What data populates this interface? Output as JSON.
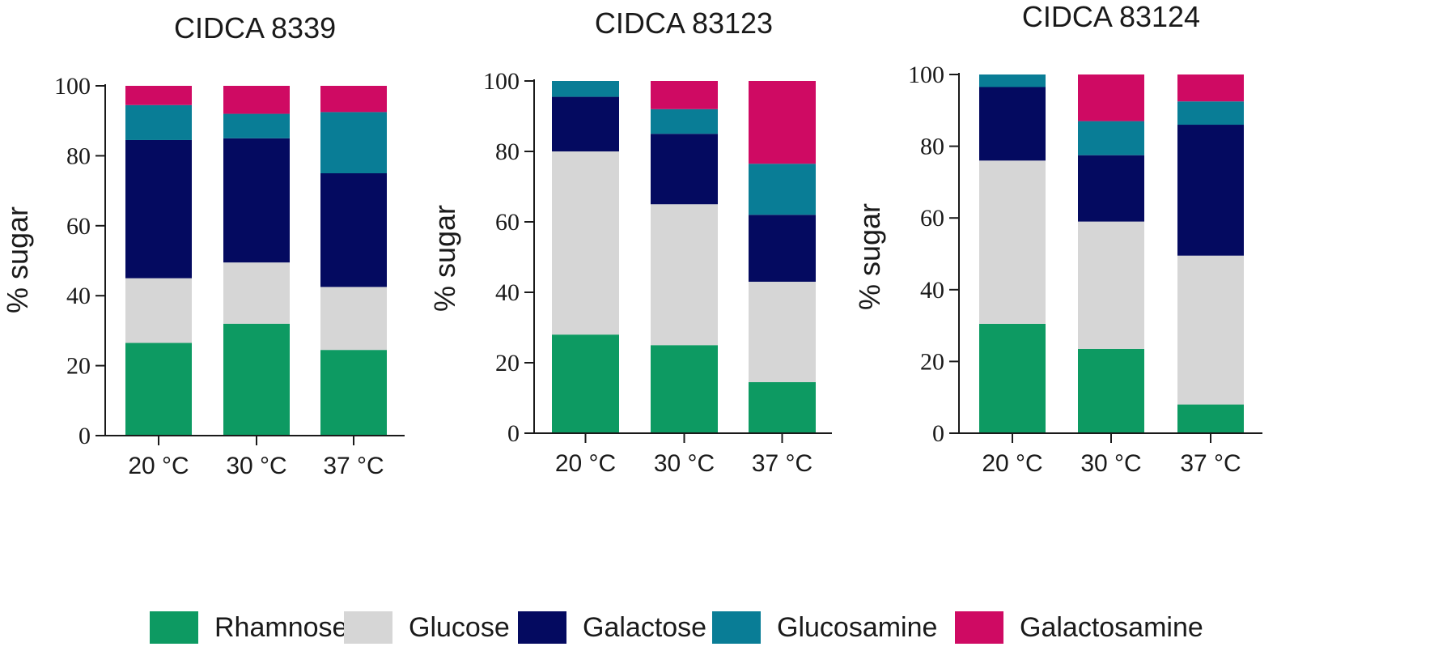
{
  "colors": {
    "Rhamnose": "#0d9a62",
    "Glucose": "#d6d6d6",
    "Galactose": "#040a60",
    "Glucosamine": "#097d96",
    "Galactosamine": "#cf0a63"
  },
  "legend": [
    "Rhamnose",
    "Glucose",
    "Galactose",
    "Glucosamine",
    "Galactosamine"
  ],
  "chart_data": [
    {
      "type": "bar",
      "stacked": true,
      "title": "CIDCA 8339",
      "ylabel": "% sugar",
      "xlabel": "",
      "ylim": [
        0,
        100
      ],
      "yticks": [
        "0",
        "20",
        "40",
        "60",
        "80",
        "100"
      ],
      "categories": [
        "20 °C",
        "30 °C",
        "37 °C"
      ],
      "series": [
        {
          "name": "Rhamnose",
          "values": [
            26.5,
            32,
            24.5
          ]
        },
        {
          "name": "Glucose",
          "values": [
            18.5,
            17.5,
            18
          ]
        },
        {
          "name": "Galactose",
          "values": [
            39.5,
            35.5,
            32.5
          ]
        },
        {
          "name": "Glucosamine",
          "values": [
            10,
            7,
            17.5
          ]
        },
        {
          "name": "Galactosamine",
          "values": [
            5.5,
            8,
            7.5
          ]
        }
      ]
    },
    {
      "type": "bar",
      "stacked": true,
      "title": "CIDCA 83123",
      "ylabel": "% sugar",
      "xlabel": "",
      "ylim": [
        0,
        100
      ],
      "yticks": [
        "0",
        "20",
        "40",
        "60",
        "80",
        "100"
      ],
      "categories": [
        "20 °C",
        "30 °C",
        "37 °C"
      ],
      "series": [
        {
          "name": "Rhamnose",
          "values": [
            28,
            25,
            14.5
          ]
        },
        {
          "name": "Glucose",
          "values": [
            52,
            40,
            28.5
          ]
        },
        {
          "name": "Galactose",
          "values": [
            15.5,
            20,
            19
          ]
        },
        {
          "name": "Glucosamine",
          "values": [
            4.5,
            7,
            14.5
          ]
        },
        {
          "name": "Galactosamine",
          "values": [
            0,
            8,
            23.5
          ]
        }
      ]
    },
    {
      "type": "bar",
      "stacked": true,
      "title": "CIDCA 83124",
      "ylabel": "% sugar",
      "xlabel": "",
      "ylim": [
        0,
        100
      ],
      "yticks": [
        "0",
        "20",
        "40",
        "60",
        "80",
        "100"
      ],
      "categories": [
        "20 °C",
        "30 °C",
        "37 °C"
      ],
      "series": [
        {
          "name": "Rhamnose",
          "values": [
            30.5,
            23.5,
            8
          ]
        },
        {
          "name": "Glucose",
          "values": [
            45.5,
            35.5,
            41.5
          ]
        },
        {
          "name": "Galactose",
          "values": [
            20.5,
            18.5,
            36.5
          ]
        },
        {
          "name": "Glucosamine",
          "values": [
            3.5,
            9.5,
            6.5
          ]
        },
        {
          "name": "Galactosamine",
          "values": [
            0,
            13,
            7.5
          ]
        }
      ]
    }
  ]
}
